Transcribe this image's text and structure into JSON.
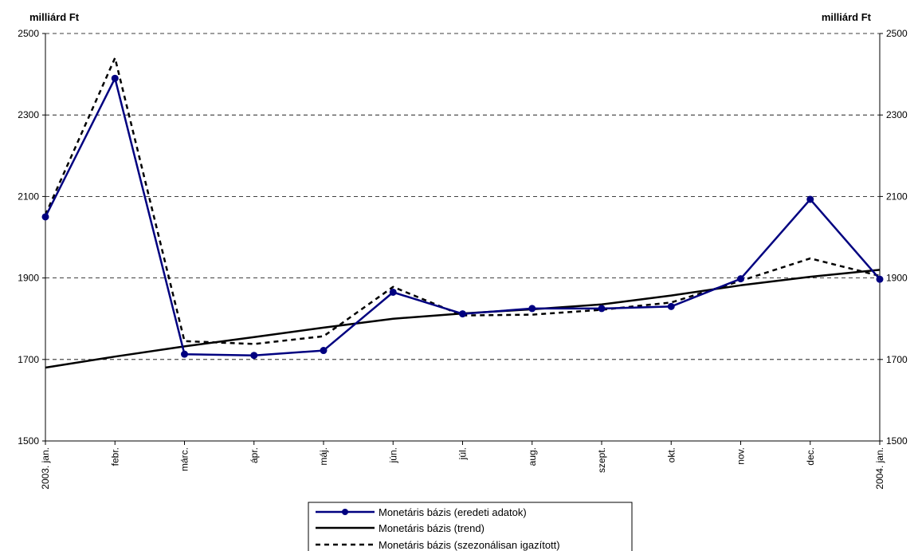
{
  "chart_data": {
    "type": "line",
    "title": "",
    "ylabel_left": "milliárd Ft",
    "ylabel_right": "milliárd Ft",
    "ylim": [
      1500,
      2500
    ],
    "yticks": [
      1500,
      1700,
      1900,
      2100,
      2300,
      2500
    ],
    "grid": "horizontal-dashed",
    "legend_position": "bottom",
    "categories": [
      "2003. jan.",
      "febr.",
      "márc.",
      "ápr.",
      "máj.",
      "jún.",
      "júl.",
      "aug.",
      "szept.",
      "okt.",
      "nov.",
      "dec.",
      "2004. jan."
    ],
    "series": [
      {
        "name": "Monetáris bázis (eredeti adatok)",
        "style": "solid-markers",
        "color": "#000080",
        "values": [
          2050,
          2390,
          1713,
          1710,
          1722,
          1865,
          1812,
          1825,
          1825,
          1830,
          1898,
          2093,
          1897
        ]
      },
      {
        "name": "Monetáris bázis (trend)",
        "style": "solid",
        "color": "#000000",
        "values": [
          1680,
          1707,
          1732,
          1755,
          1778,
          1800,
          1813,
          1823,
          1835,
          1857,
          1882,
          1903,
          1920
        ]
      },
      {
        "name": "Monetáris bázis (szezonálisan igazított)",
        "style": "dashed",
        "color": "#000000",
        "values": [
          2055,
          2440,
          1745,
          1738,
          1757,
          1878,
          1808,
          1810,
          1822,
          1840,
          1893,
          1948,
          1905
        ]
      }
    ]
  }
}
